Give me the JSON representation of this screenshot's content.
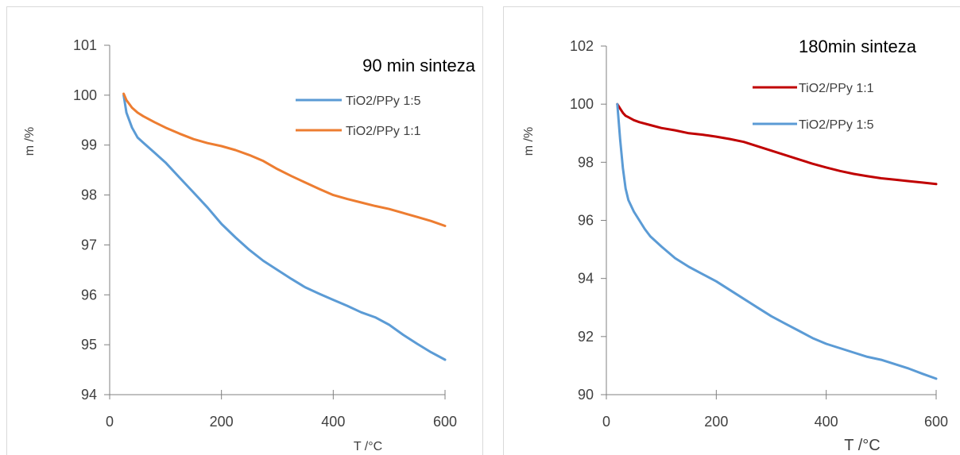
{
  "chart_data": [
    {
      "type": "line",
      "title": "90 min sinteza",
      "xlabel": "T /°C",
      "ylabel": "m /%",
      "xlim": [
        0,
        600
      ],
      "ylim": [
        94,
        101
      ],
      "x_ticks": [
        0,
        200,
        400,
        600
      ],
      "y_ticks": [
        94,
        95,
        96,
        97,
        98,
        99,
        100,
        101
      ],
      "grid": false,
      "legend_position": "top-right",
      "series": [
        {
          "name": "TiO2/PPy 1:5",
          "color": "#5b9bd5",
          "x": [
            25,
            30,
            40,
            50,
            60,
            80,
            100,
            125,
            150,
            175,
            200,
            225,
            250,
            275,
            300,
            325,
            350,
            375,
            400,
            425,
            450,
            475,
            500,
            525,
            550,
            575,
            600
          ],
          "y": [
            100.0,
            99.65,
            99.35,
            99.15,
            99.05,
            98.85,
            98.65,
            98.35,
            98.05,
            97.75,
            97.42,
            97.15,
            96.9,
            96.68,
            96.5,
            96.32,
            96.15,
            96.02,
            95.9,
            95.78,
            95.65,
            95.55,
            95.4,
            95.2,
            95.02,
            94.85,
            94.7
          ]
        },
        {
          "name": "TiO2/PPy 1:1",
          "color": "#ed7d31",
          "x": [
            25,
            30,
            40,
            50,
            60,
            80,
            100,
            125,
            150,
            175,
            200,
            225,
            250,
            275,
            300,
            325,
            350,
            375,
            400,
            425,
            450,
            475,
            500,
            525,
            550,
            575,
            600
          ],
          "y": [
            100.03,
            99.9,
            99.75,
            99.65,
            99.58,
            99.46,
            99.35,
            99.23,
            99.12,
            99.04,
            98.98,
            98.9,
            98.8,
            98.68,
            98.52,
            98.38,
            98.25,
            98.12,
            98.0,
            97.92,
            97.85,
            97.78,
            97.72,
            97.64,
            97.56,
            97.48,
            97.38
          ]
        }
      ]
    },
    {
      "type": "line",
      "title": "180min sinteza",
      "xlabel": "T /°C",
      "ylabel": "m /%",
      "xlim": [
        0,
        600
      ],
      "ylim": [
        90,
        102
      ],
      "x_ticks": [
        0,
        200,
        400,
        600
      ],
      "y_ticks": [
        90,
        92,
        94,
        96,
        98,
        100,
        102
      ],
      "grid": false,
      "legend_position": "top-right",
      "series": [
        {
          "name": "TiO2/PPy 1:1",
          "color": "#c00000",
          "x": [
            20,
            25,
            30,
            35,
            40,
            50,
            60,
            80,
            100,
            125,
            150,
            175,
            200,
            225,
            250,
            275,
            300,
            325,
            350,
            375,
            400,
            425,
            450,
            475,
            500,
            525,
            550,
            575,
            600
          ],
          "y": [
            100.0,
            99.85,
            99.7,
            99.6,
            99.55,
            99.45,
            99.38,
            99.28,
            99.18,
            99.1,
            99.0,
            98.95,
            98.88,
            98.8,
            98.7,
            98.55,
            98.4,
            98.25,
            98.1,
            97.95,
            97.82,
            97.7,
            97.6,
            97.52,
            97.45,
            97.4,
            97.35,
            97.3,
            97.25
          ]
        },
        {
          "name": "TiO2/PPy 1:5",
          "color": "#5b9bd5",
          "x": [
            20,
            25,
            30,
            35,
            40,
            50,
            60,
            70,
            80,
            100,
            125,
            150,
            175,
            200,
            225,
            250,
            275,
            300,
            325,
            350,
            375,
            400,
            425,
            450,
            475,
            500,
            525,
            550,
            575,
            600
          ],
          "y": [
            100.0,
            98.8,
            97.8,
            97.1,
            96.7,
            96.3,
            96.0,
            95.7,
            95.45,
            95.1,
            94.7,
            94.4,
            94.15,
            93.9,
            93.6,
            93.3,
            93.0,
            92.7,
            92.45,
            92.2,
            91.95,
            91.75,
            91.6,
            91.45,
            91.3,
            91.2,
            91.05,
            90.9,
            90.72,
            90.55
          ]
        }
      ]
    }
  ]
}
